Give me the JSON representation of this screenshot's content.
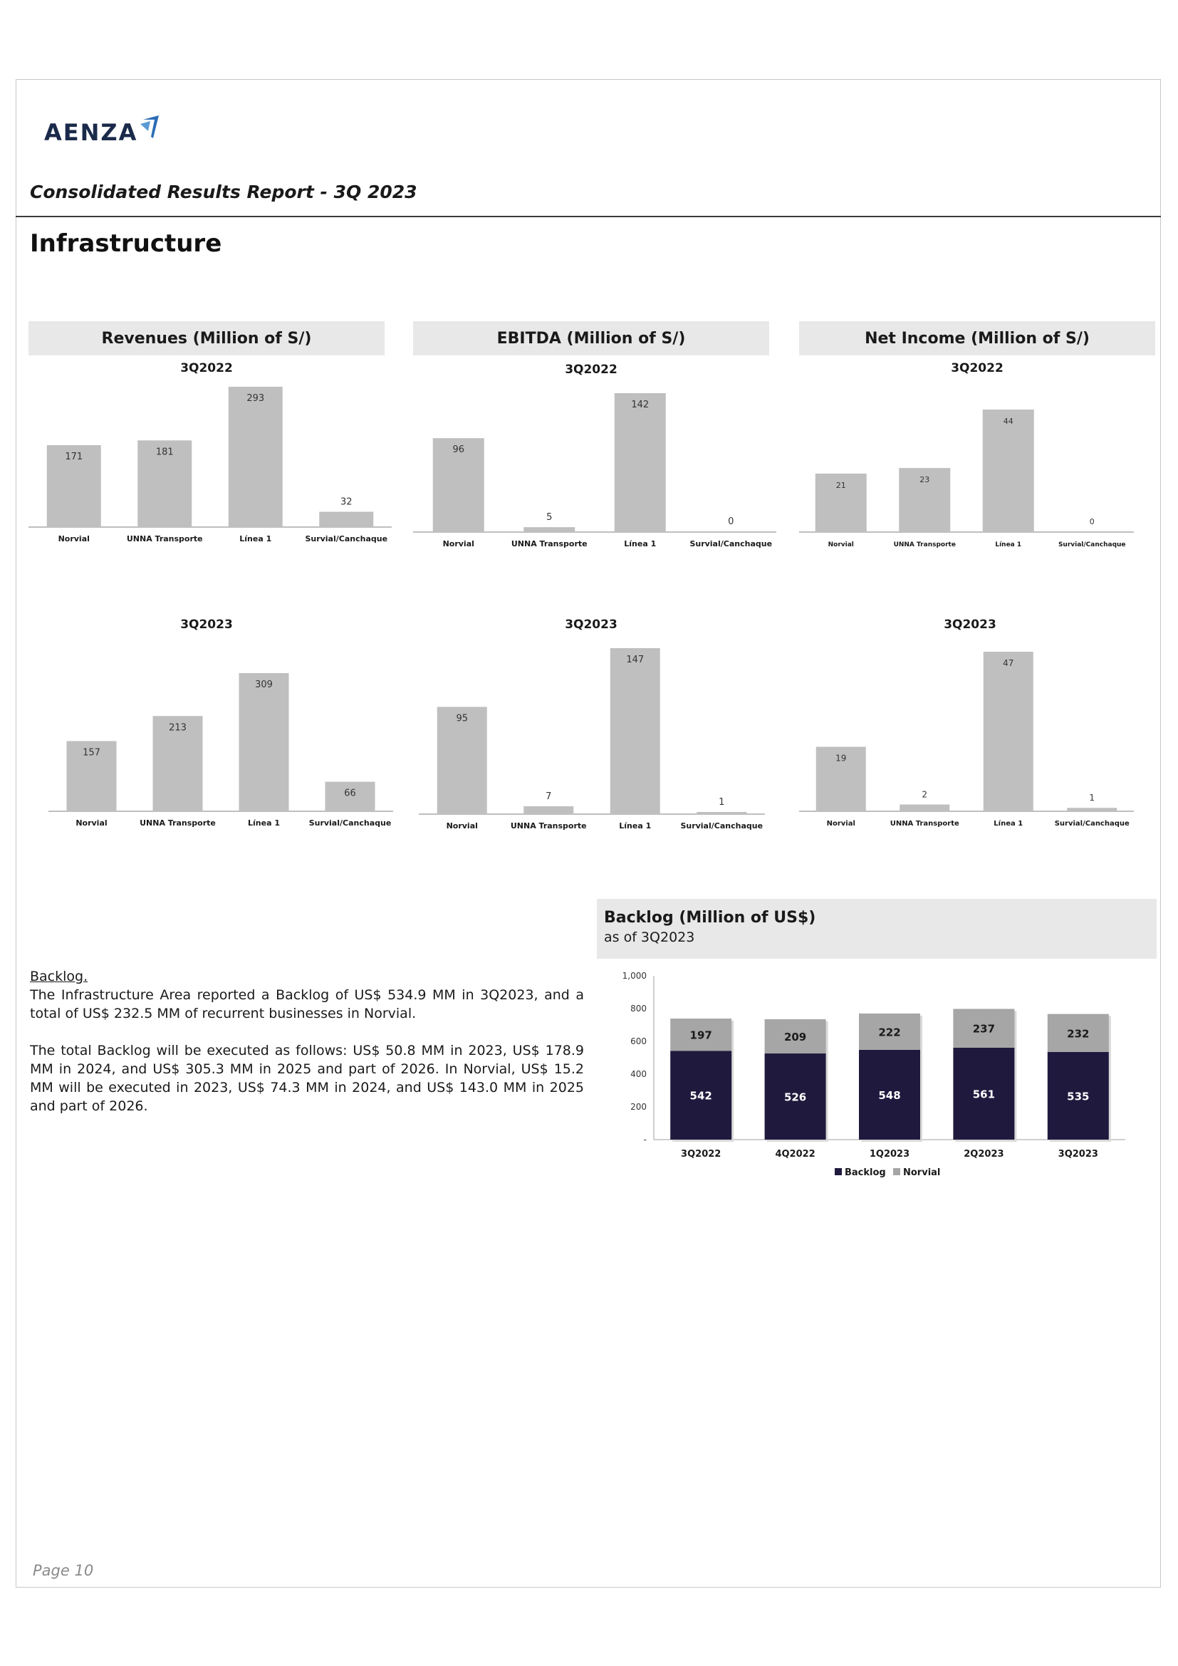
{
  "header": {
    "logo_text": "AENZA",
    "report_title": "Consolidated Results Report - 3Q 2023",
    "section_title": "Infrastructure"
  },
  "colors": {
    "bar_grey": "#bfbfbf",
    "backlog_navy": "#1f1a3d",
    "norvial_grey": "#a6a6a6",
    "header_bg": "#e8e8e8"
  },
  "panels": {
    "revenues": {
      "title": "Revenues (Million of S/)"
    },
    "ebitda": {
      "title": "EBITDA (Million of S/)"
    },
    "net_income": {
      "title": "Net Income (Million of S/)"
    }
  },
  "chart_data": [
    {
      "id": "rev22",
      "type": "bar",
      "title": "3Q2022",
      "categories": [
        "Norvial",
        "UNNA Transporte",
        "Línea 1",
        "Survial/Canchaque"
      ],
      "values": [
        171,
        181,
        293,
        32
      ],
      "ylim": [
        0,
        293
      ]
    },
    {
      "id": "ebi22",
      "type": "bar",
      "title": "3Q2022",
      "categories": [
        "Norvial",
        "UNNA Transporte",
        "Línea 1",
        "Survial/Canchaque"
      ],
      "values": [
        96,
        5,
        142,
        0
      ],
      "ylim": [
        0,
        142
      ]
    },
    {
      "id": "ni22",
      "type": "bar",
      "title": "3Q2022",
      "categories": [
        "Norvial",
        "UNNA Transporte",
        "Línea 1",
        "Survial/Canchaque"
      ],
      "values": [
        21,
        23,
        44,
        0
      ],
      "ylim": [
        0,
        44
      ]
    },
    {
      "id": "rev23",
      "type": "bar",
      "title": "3Q2023",
      "categories": [
        "Norvial",
        "UNNA Transporte",
        "Línea 1",
        "Survial/Canchaque"
      ],
      "values": [
        157,
        213,
        309,
        66
      ],
      "ylim": [
        0,
        309
      ]
    },
    {
      "id": "ebi23",
      "type": "bar",
      "title": "3Q2023",
      "categories": [
        "Norvial",
        "UNNA Transporte",
        "Línea 1",
        "Survial/Canchaque"
      ],
      "values": [
        95,
        7,
        147,
        1
      ],
      "ylim": [
        0,
        147
      ]
    },
    {
      "id": "ni23",
      "type": "bar",
      "title": "3Q2023",
      "categories": [
        "Norvial",
        "UNNA Transporte",
        "Línea 1",
        "Survial/Canchaque"
      ],
      "values": [
        19,
        2,
        47,
        1
      ],
      "ylim": [
        0,
        47
      ]
    },
    {
      "id": "backlog",
      "type": "bar",
      "stacked": true,
      "title": "Backlog (Million of US$)",
      "subtitle": "as of 3Q2023",
      "categories": [
        "3Q2022",
        "4Q2022",
        "1Q2023",
        "2Q2023",
        "3Q2023"
      ],
      "series": [
        {
          "name": "Backlog",
          "values": [
            542,
            526,
            548,
            561,
            535
          ]
        },
        {
          "name": "Norvial",
          "values": [
            197,
            209,
            222,
            237,
            232
          ]
        }
      ],
      "ylim": [
        0,
        1000
      ],
      "yticks": [
        "-",
        "200",
        "400",
        "600",
        "800",
        "1,000"
      ],
      "legend": "bottom"
    }
  ],
  "text": {
    "heading": "Backlog.",
    "p1": "The Infrastructure Area reported a Backlog of US$ 534.9 MM in 3Q2023, and a total of US$ 232.5 MM of recurrent businesses in Norvial.",
    "p2": "The total Backlog will be executed as follows: US$ 50.8 MM in 2023, US$ 178.9 MM in 2024, and US$ 305.3 MM in 2025 and part of 2026. In Norvial, US$ 15.2 MM will be executed in 2023, US$ 74.3 MM in 2024, and US$ 143.0 MM in 2025 and part of 2026."
  },
  "footer": {
    "page": "Page 10"
  }
}
